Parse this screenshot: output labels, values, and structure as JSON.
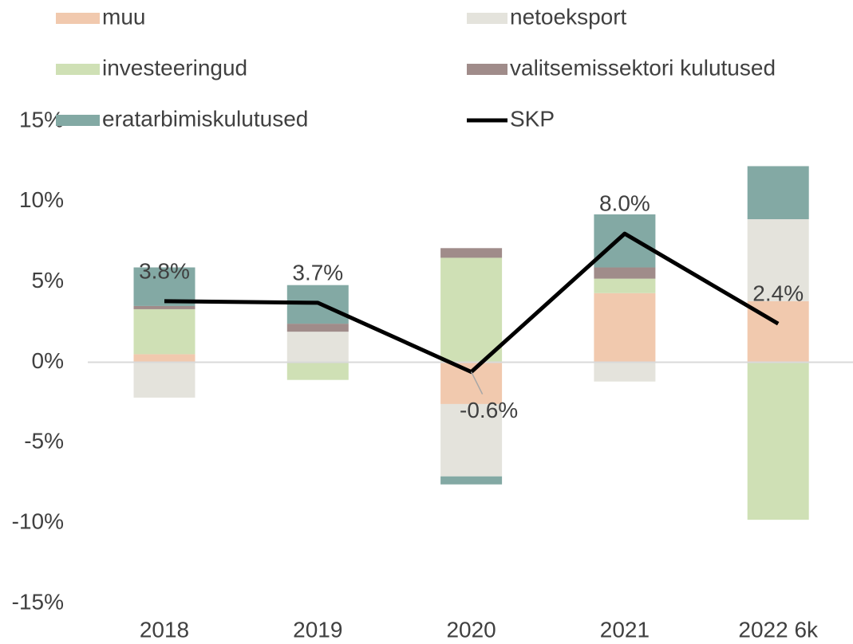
{
  "chart_data": {
    "type": "bar",
    "stacked": true,
    "categories": [
      "2018",
      "2019",
      "2020",
      "2021",
      "2022 6k"
    ],
    "series": [
      {
        "name": "muu",
        "color": "#f1c9ae",
        "values": [
          0.5,
          0,
          -2.6,
          4.3,
          3.8
        ]
      },
      {
        "name": "netoeksport",
        "color": "#e4e3dc",
        "values": [
          -2.2,
          1.9,
          -4.5,
          -1.2,
          5.1
        ]
      },
      {
        "name": "investeeringud",
        "color": "#cfe0b5",
        "values": [
          2.8,
          -1.1,
          6.5,
          0.9,
          -9.8
        ]
      },
      {
        "name": "valitsemissektori kulutused",
        "color": "#a08c8a",
        "values": [
          0.2,
          0.5,
          0.6,
          0.7,
          0
        ]
      },
      {
        "name": "eratarbimiskulutused",
        "color": "#83a9a4",
        "values": [
          2.4,
          2.4,
          -0.5,
          3.3,
          3.3
        ]
      },
      {
        "name": "SKP",
        "type": "line",
        "color": "#000000",
        "values": [
          3.8,
          3.7,
          -0.6,
          8.0,
          2.4
        ],
        "value_labels": [
          "3.8%",
          "3.7%",
          "-0.6%",
          "8.0%",
          "2.4%"
        ]
      }
    ],
    "ylim": [
      -15,
      15
    ],
    "yticks": [
      {
        "value": -15,
        "label": "-15%"
      },
      {
        "value": -10,
        "label": "-10%"
      },
      {
        "value": -5,
        "label": "-5%"
      },
      {
        "value": 0,
        "label": "0%"
      },
      {
        "value": 5,
        "label": "5%"
      },
      {
        "value": 10,
        "label": "10%"
      },
      {
        "value": 15,
        "label": "15%"
      }
    ],
    "legend": "top"
  }
}
